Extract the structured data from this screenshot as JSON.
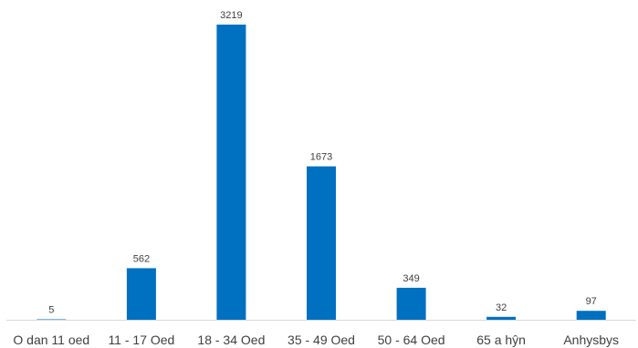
{
  "chart_data": {
    "type": "bar",
    "categories": [
      "O dan 11 oed",
      "11 - 17 Oed",
      "18 - 34 Oed",
      "35 - 49 Oed",
      "50 - 64 Oed",
      "65 a hŷn",
      "Anhysbys"
    ],
    "values": [
      5,
      562,
      3219,
      1673,
      349,
      32,
      97
    ],
    "data_labels": [
      "5",
      "562",
      "3219",
      "1673",
      "349",
      "32",
      "97"
    ],
    "title": "",
    "xlabel": "",
    "ylabel": "",
    "ylim": [
      0,
      3219
    ],
    "grid": false,
    "legend": "none",
    "bar_color": "#0070c0"
  }
}
